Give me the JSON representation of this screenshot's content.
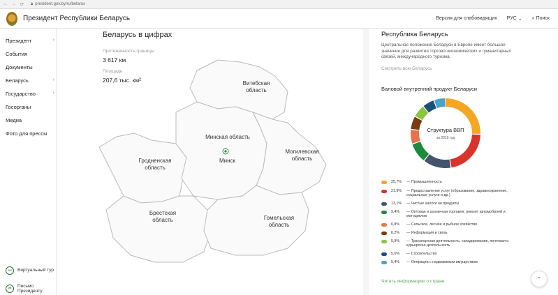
{
  "browser": {
    "url": "president.gov.by/ru/belarus",
    "nav_back": "←",
    "nav_forward": "→",
    "nav_reload": "⟳",
    "star": "☆",
    "account": "●",
    "menu": "⋮"
  },
  "header": {
    "site_title": "Президент Республики Беларусь",
    "accessibility": "Версия для слабовидящих",
    "lang": "РУС",
    "lang_chevron": "⌄",
    "search_label": "Поиск",
    "search_icon": "⌕"
  },
  "sidebar": {
    "items": [
      {
        "label": "Президент",
        "chev": "›"
      },
      {
        "label": "События",
        "chev": ""
      },
      {
        "label": "Документы",
        "chev": ""
      },
      {
        "label": "Беларусь",
        "chev": "›"
      },
      {
        "label": "Государство",
        "chev": "›"
      },
      {
        "label": "Госорганы",
        "chev": ""
      },
      {
        "label": "Медиа",
        "chev": ""
      },
      {
        "label": "Фото для прессы",
        "chev": ""
      }
    ],
    "virtual_tour": "Виртуальный тур",
    "virtual_tour_icon": "360",
    "letter": "Письмо Президенту",
    "letter_icon": "✉"
  },
  "main": {
    "title": "Беларусь в цифрах",
    "border_label": "Протяженность границы",
    "border_value": "3 617 км",
    "area_label": "Площадь",
    "area_value": "207,6 тыс. км²"
  },
  "regions": {
    "vitebsk": "Витебская область",
    "minsk_region": "Минская область",
    "minsk_city": "Минск",
    "mogilev": "Могилевская область",
    "grodno": "Гродненская область",
    "brest": "Брестская область",
    "gomel": "Гомельская область"
  },
  "info": {
    "title": "Республика Беларусь",
    "description": "Центральное положение Беларуси в Европе имеет большое значение для развития торгово-экономических и гуманитарных связей, международного туризма.",
    "more_link": "Смотреть всю Беларусь",
    "read_link": "Читать информацию о стране"
  },
  "chart_data": {
    "type": "pie",
    "title": "Валовой внутренний продукт Беларуси",
    "center_title": "Структура ВВП",
    "center_subtitle": "за 2019 год",
    "slices": [
      {
        "pct": "25,7%",
        "value": 25.7,
        "label": "Промышленность",
        "color": "#f5a623"
      },
      {
        "pct": "21,9%",
        "value": 21.9,
        "label": "Предоставление услуг (образование, здравоохранение, социальные услуги и др.)",
        "color": "#d9342b"
      },
      {
        "pct": "13,1%",
        "value": 13.1,
        "label": "Чистые налоги на продукты",
        "color": "#44546a"
      },
      {
        "pct": "9,4%",
        "value": 9.4,
        "label": "Оптовая и розничная торговля; ремонт автомобилей и мотоциклов",
        "color": "#1e8a3c"
      },
      {
        "pct": "6,8%",
        "value": 6.8,
        "label": "Сельское, лесное и рыбное хозяйство",
        "color": "#e8734a"
      },
      {
        "pct": "6,2%",
        "value": 6.2,
        "label": "Информация и связь",
        "color": "#7a3b12"
      },
      {
        "pct": "5,9%",
        "value": 5.9,
        "label": "Транспортная деятельность, складирование, почтовая и курьерская деятельность",
        "color": "#8cc63f"
      },
      {
        "pct": "5,6%",
        "value": 5.6,
        "label": "Строительство",
        "color": "#1f4e79"
      },
      {
        "pct": "5,4%",
        "value": 5.4,
        "label": "Операции с недвижимым имуществом",
        "color": "#4aa3c8"
      }
    ]
  },
  "scroll_up": "⌃"
}
